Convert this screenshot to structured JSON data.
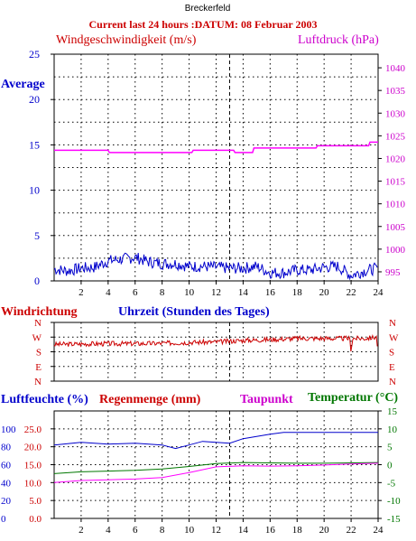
{
  "header": {
    "station": "Breckerfeld",
    "subtitle": "Current last 24 hours :DATUM: 08 Februar 2003"
  },
  "colors": {
    "wind": "#0000cc",
    "pressure": "#ff00ff",
    "direction": "#cc0000",
    "humidity": "#0000cc",
    "rain": "#cc0000",
    "dewpoint": "#ff00ff",
    "temperature": "#007700",
    "axis_blue": "#0000cc",
    "axis_red": "#cc0000",
    "axis_magenta": "#cc00cc",
    "axis_green": "#007700"
  },
  "chart_data": [
    {
      "type": "line",
      "title": "",
      "ylabel": "Windgeschwindigkeit (m/s)",
      "y2label": "Luftdruck (hPa)",
      "annotation": "Average",
      "xlabel": "Uhrzeit (Stunden des Tages)",
      "xlim": [
        0,
        24
      ],
      "ylim": [
        0,
        25
      ],
      "y2lim": [
        993,
        1043
      ],
      "x_ticks": [
        "2",
        "4",
        "6",
        "8",
        "10",
        "12",
        "14",
        "16",
        "18",
        "20",
        "22",
        "24"
      ],
      "y_ticks": [
        "0",
        "5",
        "10",
        "15",
        "20",
        "25"
      ],
      "y2_ticks": [
        "995",
        "1000",
        "1005",
        "1010",
        "1015",
        "1020",
        "1025",
        "1030",
        "1035",
        "1040"
      ],
      "grid": true,
      "series": [
        {
          "name": "Windgeschwindigkeit (m/s)",
          "axis": "left",
          "x": [
            0,
            1,
            2,
            3,
            4,
            5,
            6,
            7,
            8,
            9,
            10,
            11,
            12,
            13,
            14,
            15,
            16,
            17,
            18,
            19,
            20,
            21,
            22,
            23,
            24
          ],
          "y": [
            1.3,
            1.1,
            1.4,
            1.5,
            2.2,
            2.4,
            2.6,
            2.1,
            1.9,
            1.9,
            1.6,
            1.6,
            1.5,
            1.4,
            1.4,
            1.6,
            0.9,
            0.9,
            1.2,
            1.2,
            1.5,
            1.6,
            0.6,
            1.1,
            1.4
          ]
        },
        {
          "name": "Luftdruck (hPa)",
          "axis": "right",
          "x": [
            0,
            4,
            4.1,
            10.2,
            10.3,
            13.3,
            13.4,
            14.7,
            14.8,
            19.4,
            19.5,
            23.3,
            23.4,
            24
          ],
          "y": [
            1021.8,
            1021.8,
            1021.3,
            1021.3,
            1021.8,
            1021.8,
            1021.3,
            1021.3,
            1022.3,
            1022.3,
            1022.8,
            1022.8,
            1023.6,
            1023.6
          ]
        }
      ]
    },
    {
      "type": "line",
      "title": "",
      "ylabel": "Windrichtung",
      "xlabel": "",
      "xlim": [
        0,
        24
      ],
      "y_ticks": [
        "N",
        "W",
        "S",
        "E",
        "N"
      ],
      "grid": true,
      "series": [
        {
          "name": "Windrichtung",
          "x": [
            0,
            2,
            4,
            6,
            8,
            10,
            12,
            14,
            16,
            18,
            20,
            21.9,
            22,
            22.1,
            23,
            23.9,
            24,
            24.1
          ],
          "y": [
            225,
            228,
            230,
            230,
            232,
            238,
            240,
            250,
            255,
            262,
            262,
            262,
            180,
            262,
            262,
            270,
            150,
            260
          ]
        }
      ]
    },
    {
      "type": "line",
      "title": "",
      "ylabel": "Luftfeuchte (%)",
      "ylabel2": "Regenmenge (mm)",
      "annotation": "Taupunkt",
      "y2label": "Temperatur (°C)",
      "xlim": [
        0,
        24
      ],
      "ylim": [
        0,
        120
      ],
      "y2lim": [
        -15,
        15
      ],
      "x_ticks": [
        "2",
        "4",
        "6",
        "8",
        "10",
        "12",
        "14",
        "16",
        "18",
        "20",
        "22",
        "24"
      ],
      "y_ticks_humidity": [
        "0",
        "20",
        "40",
        "60",
        "80",
        "100"
      ],
      "y_ticks_rain": [
        "0.0",
        "5.0",
        "10.0",
        "15.0",
        "20.0",
        "25.0"
      ],
      "y2_ticks": [
        "-15",
        "-10",
        "-5",
        "0",
        "5",
        "10",
        "15"
      ],
      "grid": true,
      "series": [
        {
          "name": "Luftfeuchte (%)",
          "axis": "left",
          "x": [
            0,
            2,
            4,
            6,
            8,
            9,
            10,
            11,
            12,
            13,
            14,
            16,
            17,
            20,
            22,
            24
          ],
          "y": [
            82,
            85,
            83,
            84,
            82,
            78,
            82,
            86,
            85,
            84,
            89,
            94,
            96,
            96,
            96,
            96
          ]
        },
        {
          "name": "Temperatur (°C)",
          "axis": "right",
          "x": [
            0,
            2,
            4,
            6,
            8,
            10,
            12,
            14,
            16,
            18,
            20,
            22,
            24
          ],
          "y": [
            -2.5,
            -2,
            -1.8,
            -1.6,
            -1.2,
            -0.5,
            0.3,
            0.6,
            0.5,
            0.4,
            0.4,
            0.5,
            0.6
          ]
        },
        {
          "name": "Taupunkt",
          "axis": "right",
          "x": [
            0,
            2,
            4,
            6,
            8,
            10,
            12,
            14,
            16,
            18,
            20,
            22,
            24
          ],
          "y": [
            -5,
            -4.4,
            -4.2,
            -4,
            -3.6,
            -2.2,
            -0.6,
            -0.3,
            -0.4,
            -0.3,
            -0.1,
            0.2,
            0.4
          ]
        }
      ]
    }
  ]
}
